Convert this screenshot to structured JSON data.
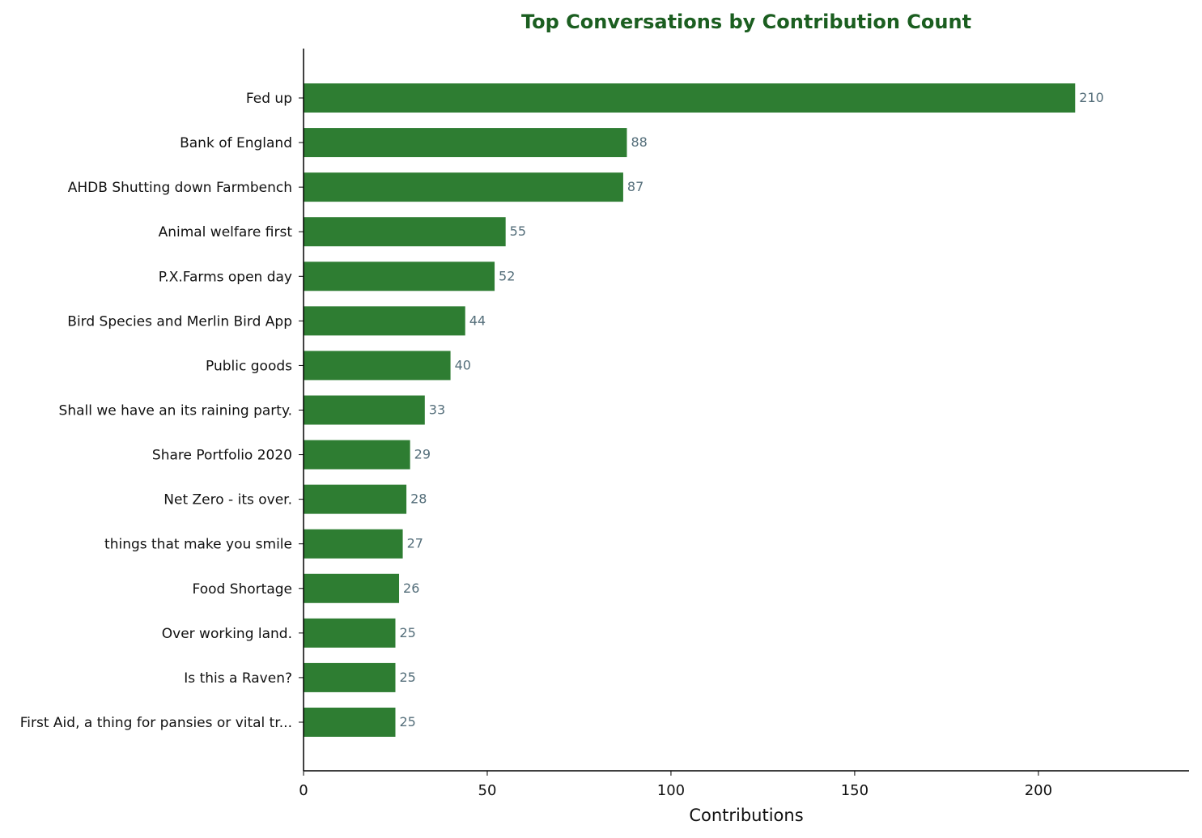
{
  "chart_data": {
    "type": "bar",
    "orientation": "horizontal",
    "title": "Top Conversations by Contribution Count",
    "xlabel": "Contributions",
    "ylabel": "",
    "xlim": [
      0,
      241
    ],
    "xticks": [
      0,
      50,
      100,
      150,
      200
    ],
    "categories": [
      "Fed up",
      "Bank of England",
      "AHDB Shutting down Farmbench",
      "Animal welfare first",
      "P.X.Farms open day",
      "Bird Species and Merlin Bird App",
      "Public goods",
      "Shall we have an its raining party.",
      "Share Portfolio 2020",
      "Net Zero - its over.",
      "things that make you smile",
      "Food Shortage",
      "Over working land.",
      "Is this a Raven?",
      "First Aid, a thing for pansies or vital tr..."
    ],
    "values": [
      210,
      88,
      87,
      55,
      52,
      44,
      40,
      33,
      29,
      28,
      27,
      26,
      25,
      25,
      25
    ],
    "data_labels": true,
    "grid": false,
    "legend": "none",
    "colors": {
      "bar": "#2e7d32",
      "title": "#1b5e20",
      "value_label": "#546e7a",
      "axis": "#000000"
    }
  }
}
